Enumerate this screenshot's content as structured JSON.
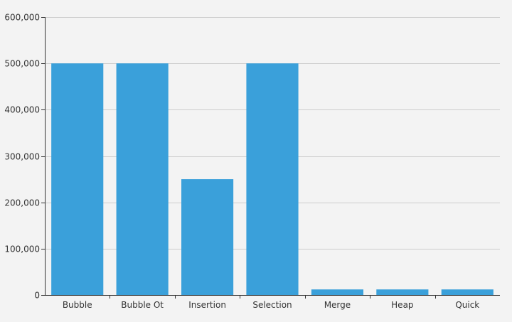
{
  "chart_data": {
    "type": "bar",
    "title": "",
    "xlabel": "",
    "ylabel": "",
    "categories": [
      "Bubble",
      "Bubble Ot",
      "Insertion",
      "Selection",
      "Merge",
      "Heap",
      "Quick"
    ],
    "values": [
      500000,
      500000,
      250000,
      500000,
      12000,
      12000,
      12000
    ],
    "ylim": [
      0,
      600000
    ],
    "yticks": [
      0,
      100000,
      200000,
      300000,
      400000,
      500000,
      600000
    ],
    "ytick_labels": [
      "0",
      "100,000",
      "200,000",
      "300,000",
      "400,000",
      "500,000",
      "600,000"
    ],
    "grid": true,
    "legend": "none",
    "bar_color": "#3aa0da",
    "grid_color": "#cccccc",
    "axis_color": "#333333",
    "background_color": "#f3f3f3"
  }
}
